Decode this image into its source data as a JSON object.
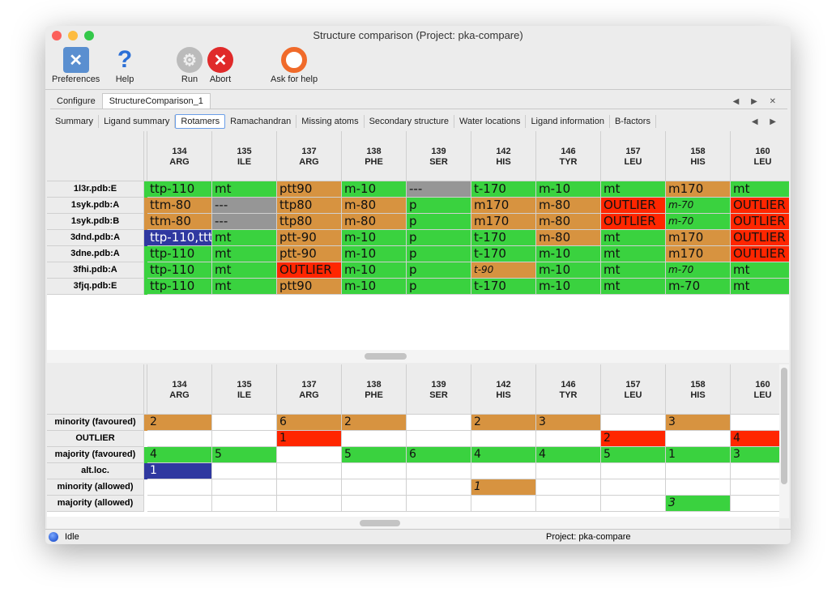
{
  "window": {
    "title": "Structure comparison (Project: pka-compare)"
  },
  "toolbar": [
    {
      "label": "Preferences",
      "icon": "preferences-tools-icon"
    },
    {
      "label": "Help",
      "icon": "help-question-icon"
    },
    {
      "label": "Run",
      "icon": "gear-icon"
    },
    {
      "label": "Abort",
      "icon": "abort-x-icon"
    },
    {
      "label": "Ask for help",
      "icon": "lifebuoy-icon"
    }
  ],
  "main_tabs": [
    {
      "label": "Configure"
    },
    {
      "label": "StructureComparison_1",
      "active": true
    }
  ],
  "sub_tabs": [
    {
      "label": "Summary"
    },
    {
      "label": "Ligand summary"
    },
    {
      "label": "Rotamers",
      "active": true
    },
    {
      "label": "Ramachandran"
    },
    {
      "label": "Missing atoms"
    },
    {
      "label": "Secondary structure"
    },
    {
      "label": "Water locations"
    },
    {
      "label": "Ligand information"
    },
    {
      "label": "B-factors"
    }
  ],
  "colors": {
    "favoured": "#3ad23f",
    "allowed": "#d79340",
    "outlier": "#ff2600",
    "missing": "#969696",
    "altloc": "#2f38a0"
  },
  "columns": [
    {
      "num": "134",
      "res": "ARG"
    },
    {
      "num": "135",
      "res": "ILE"
    },
    {
      "num": "137",
      "res": "ARG"
    },
    {
      "num": "138",
      "res": "PHE"
    },
    {
      "num": "139",
      "res": "SER"
    },
    {
      "num": "142",
      "res": "HIS"
    },
    {
      "num": "146",
      "res": "TYR"
    },
    {
      "num": "157",
      "res": "LEU"
    },
    {
      "num": "158",
      "res": "HIS"
    },
    {
      "num": "160",
      "res": "LEU"
    }
  ],
  "rotamer_rows": [
    {
      "label": "1l3r.pdb:E",
      "cells": [
        [
          "ttp-110",
          "g"
        ],
        [
          "mt",
          "g"
        ],
        [
          "ptt90",
          "o"
        ],
        [
          "m-10",
          "g"
        ],
        [
          "---",
          "x"
        ],
        [
          "t-170",
          "g"
        ],
        [
          "m-10",
          "g"
        ],
        [
          "mt",
          "g"
        ],
        [
          "m170",
          "o"
        ],
        [
          "mt",
          "g"
        ]
      ]
    },
    {
      "label": "1syk.pdb:A",
      "cells": [
        [
          "ttm-80",
          "o"
        ],
        [
          "---",
          "x"
        ],
        [
          "ttp80",
          "o"
        ],
        [
          "m-80",
          "o"
        ],
        [
          "p",
          "g"
        ],
        [
          "m170",
          "o"
        ],
        [
          "m-80",
          "o"
        ],
        [
          "OUTLIER",
          "r"
        ],
        [
          "m-70",
          "gi"
        ],
        [
          "OUTLIER",
          "r"
        ]
      ]
    },
    {
      "label": "1syk.pdb:B",
      "cells": [
        [
          "ttm-80",
          "o"
        ],
        [
          "---",
          "x"
        ],
        [
          "ttp80",
          "o"
        ],
        [
          "m-80",
          "o"
        ],
        [
          "p",
          "g"
        ],
        [
          "m170",
          "o"
        ],
        [
          "m-80",
          "o"
        ],
        [
          "OUTLIER",
          "r"
        ],
        [
          "m-70",
          "gi"
        ],
        [
          "OUTLIER",
          "r"
        ]
      ]
    },
    {
      "label": "3dnd.pdb:A",
      "cells": [
        [
          "ttp-110,ttt",
          "b"
        ],
        [
          "mt",
          "g"
        ],
        [
          "ptt-90",
          "o"
        ],
        [
          "m-10",
          "g"
        ],
        [
          "p",
          "g"
        ],
        [
          "t-170",
          "g"
        ],
        [
          "m-80",
          "o"
        ],
        [
          "mt",
          "g"
        ],
        [
          "m170",
          "o"
        ],
        [
          "OUTLIER",
          "r"
        ]
      ]
    },
    {
      "label": "3dne.pdb:A",
      "cells": [
        [
          "ttp-110",
          "g"
        ],
        [
          "mt",
          "g"
        ],
        [
          "ptt-90",
          "o"
        ],
        [
          "m-10",
          "g"
        ],
        [
          "p",
          "g"
        ],
        [
          "t-170",
          "g"
        ],
        [
          "m-10",
          "g"
        ],
        [
          "mt",
          "g"
        ],
        [
          "m170",
          "o"
        ],
        [
          "OUTLIER",
          "r"
        ]
      ]
    },
    {
      "label": "3fhi.pdb:A",
      "cells": [
        [
          "ttp-110",
          "g"
        ],
        [
          "mt",
          "g"
        ],
        [
          "OUTLIER",
          "r"
        ],
        [
          "m-10",
          "g"
        ],
        [
          "p",
          "g"
        ],
        [
          "t-90",
          "oi"
        ],
        [
          "m-10",
          "g"
        ],
        [
          "mt",
          "g"
        ],
        [
          "m-70",
          "gi"
        ],
        [
          "mt",
          "g"
        ]
      ]
    },
    {
      "label": "3fjq.pdb:E",
      "cells": [
        [
          "ttp-110",
          "g"
        ],
        [
          "mt",
          "g"
        ],
        [
          "ptt90",
          "o"
        ],
        [
          "m-10",
          "g"
        ],
        [
          "p",
          "g"
        ],
        [
          "t-170",
          "g"
        ],
        [
          "m-10",
          "g"
        ],
        [
          "mt",
          "g"
        ],
        [
          "m-70",
          "g"
        ],
        [
          "mt",
          "g"
        ]
      ]
    }
  ],
  "summary_rows": [
    {
      "label": "minority (favoured)",
      "cells": [
        [
          "2",
          "o"
        ],
        [
          "",
          ""
        ],
        [
          "6",
          "o"
        ],
        [
          "2",
          "o"
        ],
        [
          "",
          ""
        ],
        [
          "2",
          "o"
        ],
        [
          "3",
          "o"
        ],
        [
          "",
          ""
        ],
        [
          "3",
          "o"
        ],
        [
          "",
          ""
        ]
      ]
    },
    {
      "label": "OUTLIER",
      "cells": [
        [
          "",
          ""
        ],
        [
          "",
          ""
        ],
        [
          "1",
          "r"
        ],
        [
          "",
          ""
        ],
        [
          "",
          ""
        ],
        [
          "",
          ""
        ],
        [
          "",
          ""
        ],
        [
          "2",
          "r"
        ],
        [
          "",
          ""
        ],
        [
          "4",
          "r"
        ]
      ]
    },
    {
      "label": "majority (favoured)",
      "cells": [
        [
          "4",
          "g"
        ],
        [
          "5",
          "g"
        ],
        [
          "",
          ""
        ],
        [
          "5",
          "g"
        ],
        [
          "6",
          "g"
        ],
        [
          "4",
          "g"
        ],
        [
          "4",
          "g"
        ],
        [
          "5",
          "g"
        ],
        [
          "1",
          "g"
        ],
        [
          "3",
          "g"
        ]
      ]
    },
    {
      "label": "alt.loc.",
      "cells": [
        [
          "1",
          "b"
        ],
        [
          "",
          ""
        ],
        [
          "",
          ""
        ],
        [
          "",
          ""
        ],
        [
          "",
          ""
        ],
        [
          "",
          ""
        ],
        [
          "",
          ""
        ],
        [
          "",
          ""
        ],
        [
          "",
          ""
        ],
        [
          "",
          ""
        ]
      ]
    },
    {
      "label": "minority (allowed)",
      "cells": [
        [
          "",
          ""
        ],
        [
          "",
          ""
        ],
        [
          "",
          ""
        ],
        [
          "",
          ""
        ],
        [
          "",
          ""
        ],
        [
          "1",
          "oi"
        ],
        [
          "",
          ""
        ],
        [
          "",
          ""
        ],
        [
          "",
          ""
        ],
        [
          "",
          ""
        ]
      ]
    },
    {
      "label": "majority (allowed)",
      "cells": [
        [
          "",
          ""
        ],
        [
          "",
          ""
        ],
        [
          "",
          ""
        ],
        [
          "",
          ""
        ],
        [
          "",
          ""
        ],
        [
          "",
          ""
        ],
        [
          "",
          ""
        ],
        [
          "",
          ""
        ],
        [
          "3",
          "gi"
        ],
        [
          "",
          ""
        ]
      ]
    }
  ],
  "status": {
    "state": "Idle",
    "project": "Project: pka-compare"
  }
}
